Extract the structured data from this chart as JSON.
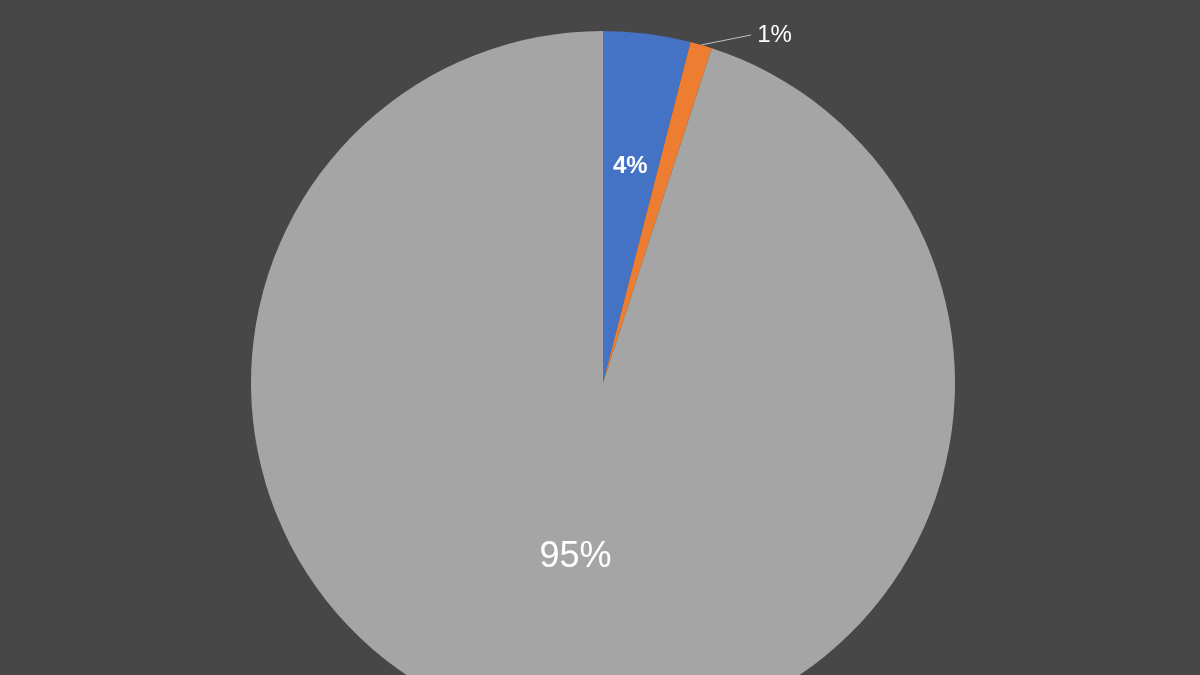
{
  "chart_data": {
    "type": "pie",
    "categories": [
      null,
      null,
      null
    ],
    "values": [
      4,
      1,
      95
    ],
    "colors": [
      "#4472c4",
      "#ed7d31",
      "#a5a5a5"
    ],
    "value_labels": [
      "4%",
      "1%",
      "95%"
    ]
  }
}
